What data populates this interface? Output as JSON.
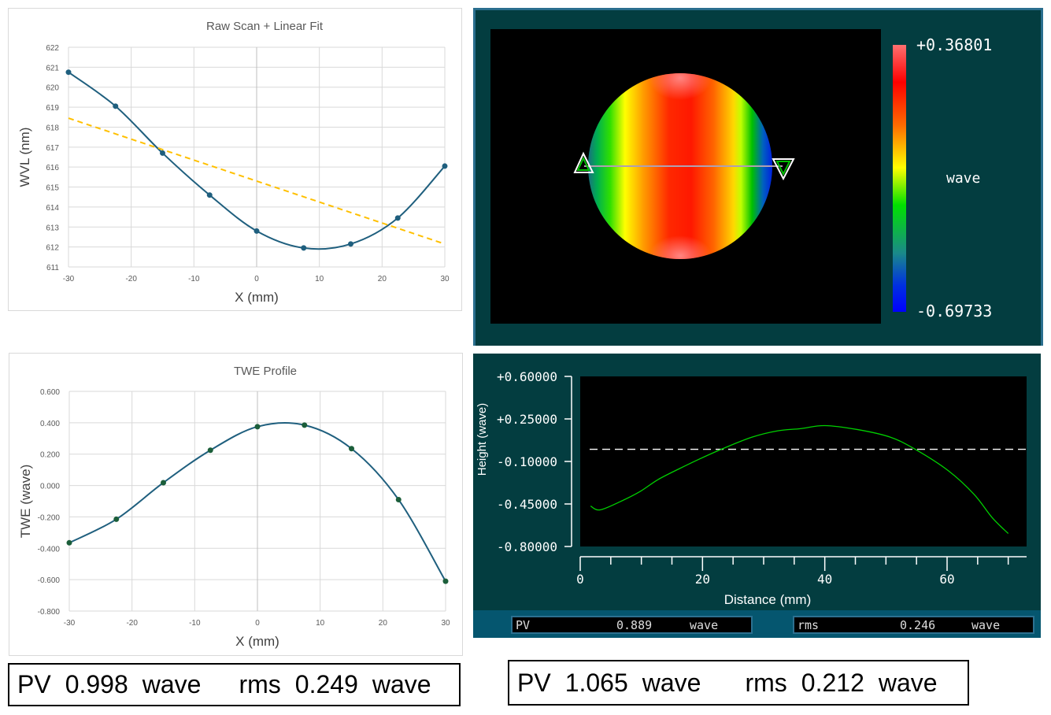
{
  "chart_data": [
    {
      "type": "line",
      "title": "Raw Scan + Linear Fit",
      "xlabel": "X (mm)",
      "ylabel": "WVL (nm)",
      "xlim": [
        -30,
        30
      ],
      "ylim": [
        611,
        622
      ],
      "xticks": [
        -30,
        -20,
        -10,
        0,
        10,
        20,
        30
      ],
      "yticks": [
        611,
        612,
        613,
        614,
        615,
        616,
        617,
        618,
        619,
        620,
        621,
        622
      ],
      "grid": true,
      "colors": {
        "data": "#1f5f7e",
        "fit": "#ffc000"
      },
      "series": [
        {
          "x": [
            -30,
            -22.5,
            -15,
            -7.5,
            0,
            7.5,
            15,
            22.5,
            30
          ],
          "values": [
            620.75,
            619.05,
            616.7,
            614.6,
            612.8,
            611.95,
            612.15,
            613.45,
            616.05
          ],
          "style": "smooth-markers"
        },
        {
          "x": [
            -30,
            30
          ],
          "values": [
            618.45,
            612.15
          ],
          "style": "dashed"
        }
      ]
    },
    {
      "type": "line",
      "title": "TWE Profile",
      "xlabel": "X (mm)",
      "ylabel": "TWE (wave)",
      "xlim": [
        -30,
        30
      ],
      "ylim": [
        -0.8,
        0.6
      ],
      "xticks": [
        -30,
        -20,
        -10,
        0,
        10,
        20,
        30
      ],
      "yticks": [
        -0.8,
        -0.6,
        -0.4,
        -0.2,
        0.0,
        0.2,
        0.4,
        0.6
      ],
      "ytick_labels": [
        "-0.800",
        "-0.600",
        "-0.400",
        "-0.200",
        "0.000",
        "0.200",
        "0.400",
        "0.600"
      ],
      "grid": true,
      "colors": {
        "line": "#1f5f7e",
        "marker": "#1b5e3a"
      },
      "series": [
        {
          "x": [
            -30,
            -22.5,
            -15,
            -7.5,
            0,
            7.5,
            15,
            22.5,
            30
          ],
          "values": [
            -0.365,
            -0.215,
            0.018,
            0.225,
            0.375,
            0.385,
            0.235,
            -0.09,
            -0.61
          ],
          "style": "smooth-markers"
        }
      ]
    },
    {
      "type": "heatmap",
      "colorbar": {
        "max_label": "+0.36801",
        "min_label": "-0.69733",
        "unit": "wave"
      },
      "colormap": [
        "#ff7070",
        "#ff0000",
        "#ff6a00",
        "#ffff00",
        "#00e000",
        "#1a8a8a",
        "#0030e0",
        "#0000ff"
      ]
    },
    {
      "type": "line",
      "xlabel": "Distance (mm)",
      "ylabel": "Height (wave)",
      "xlim": [
        0,
        73
      ],
      "ylim": [
        -0.8,
        0.6
      ],
      "xticks": [
        0,
        20,
        40,
        60
      ],
      "yticks": [
        0.6,
        0.25,
        -0.1,
        -0.45,
        -0.8
      ],
      "ytick_labels": [
        "+0.60000",
        "+0.25000",
        "-0.10000",
        "-0.45000",
        "-0.80000"
      ],
      "reference_line": 0,
      "colors": {
        "line": "#00d000",
        "reference": "#ffffff"
      },
      "series": [
        {
          "x": [
            1.7,
            3.2,
            6.4,
            9.7,
            12.7,
            16.2,
            19.5,
            23.4,
            28.1,
            32.3,
            36,
            40,
            45.4,
            50.7,
            54.9,
            60.2,
            64.4,
            67.4,
            70
          ],
          "values": [
            -0.467,
            -0.499,
            -0.434,
            -0.35,
            -0.25,
            -0.16,
            -0.08,
            0.007,
            0.1,
            0.152,
            0.17,
            0.195,
            0.162,
            0.1,
            -0.003,
            -0.176,
            -0.37,
            -0.564,
            -0.693
          ]
        }
      ]
    }
  ],
  "profile_readout": {
    "pv": {
      "label": "PV",
      "value": "0.889",
      "unit": "wave"
    },
    "rms": {
      "label": "rms",
      "value": "0.246",
      "unit": "wave"
    }
  },
  "summary_left": {
    "pv_label": "PV",
    "pv_value": "0.998",
    "pv_unit": "wave",
    "rms_label": "rms",
    "rms_value": "0.249",
    "rms_unit": "wave"
  },
  "summary_right": {
    "pv_label": "PV",
    "pv_value": "1.065",
    "pv_unit": "wave",
    "rms_label": "rms",
    "rms_value": "0.212",
    "rms_unit": "wave"
  }
}
